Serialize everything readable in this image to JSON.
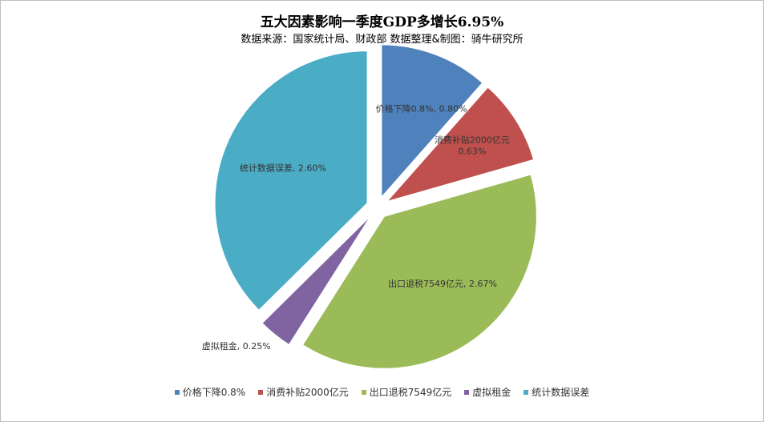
{
  "chart_data": {
    "type": "pie",
    "title": "五大因素影响一季度GDP多增长6.95%",
    "subtitle": "数据来源：国家统计局、财政部 数据整理&制图：骑牛研究所",
    "series": [
      {
        "name": "价格下降0.8%",
        "value": 0.8,
        "label": "价格下降0.8%, 0.80%",
        "color": "#4F81BD"
      },
      {
        "name": "消费补贴2000亿元",
        "value": 0.63,
        "label": "消费补贴2000亿元, 0.63%",
        "color": "#C0504D"
      },
      {
        "name": "出口退税7549亿元",
        "value": 2.67,
        "label": "出口退税7549亿元, 2.67%",
        "color": "#9BBB59"
      },
      {
        "name": "虚拟租金",
        "value": 0.25,
        "label": "虚拟租金, 0.25%",
        "color": "#8064A2"
      },
      {
        "name": "统计数据误差",
        "value": 2.6,
        "label": "统计数据误差, 2.60%",
        "color": "#4BACC6"
      }
    ],
    "legend_position": "bottom"
  }
}
